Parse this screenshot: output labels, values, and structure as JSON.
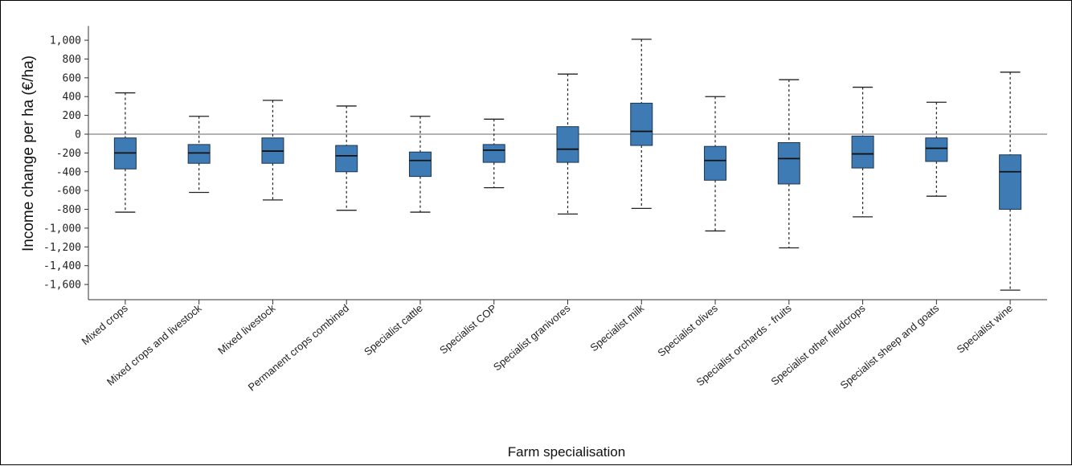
{
  "chart_data": {
    "type": "boxplot",
    "title": "",
    "xlabel": "Farm specialisation",
    "ylabel": "Income change per ha (€/ha)",
    "ylim": [
      -1700,
      1100
    ],
    "yticks": [
      1000,
      800,
      600,
      400,
      200,
      0,
      -200,
      -400,
      -600,
      -800,
      -1000,
      -1200,
      -1400,
      -1600
    ],
    "ytick_labels": [
      "1,000",
      "800",
      "600",
      "400",
      "200",
      "0",
      "-200",
      "-400",
      "-600",
      "-800",
      "-1,000",
      "-1,200",
      "-1,400",
      "-1,600"
    ],
    "reference_line": 0,
    "box_color": "#3e7bb4",
    "categories": [
      "Mixed crops",
      "Mixed crops and livestock",
      "Mixed livestock",
      "Permanent crops combined",
      "Specialist cattle",
      "Specialist COP",
      "Specialist granivores",
      "Specialist milk",
      "Specialist olives",
      "Specialist orchards - fruits",
      "Specialist other fieldcrops",
      "Specialist sheep and goats",
      "Specialist wine"
    ],
    "boxes": [
      {
        "min": -830,
        "q1": -370,
        "median": -200,
        "q3": -40,
        "max": 440
      },
      {
        "min": -620,
        "q1": -310,
        "median": -200,
        "q3": -110,
        "max": 190
      },
      {
        "min": -700,
        "q1": -310,
        "median": -180,
        "q3": -40,
        "max": 360
      },
      {
        "min": -810,
        "q1": -400,
        "median": -230,
        "q3": -120,
        "max": 300
      },
      {
        "min": -830,
        "q1": -450,
        "median": -280,
        "q3": -190,
        "max": 190
      },
      {
        "min": -570,
        "q1": -300,
        "median": -170,
        "q3": -110,
        "max": 160
      },
      {
        "min": -850,
        "q1": -300,
        "median": -160,
        "q3": 80,
        "max": 640
      },
      {
        "min": -790,
        "q1": -120,
        "median": 30,
        "q3": 330,
        "max": 1010
      },
      {
        "min": -1030,
        "q1": -490,
        "median": -280,
        "q3": -130,
        "max": 400
      },
      {
        "min": -1210,
        "q1": -530,
        "median": -260,
        "q3": -90,
        "max": 580
      },
      {
        "min": -880,
        "q1": -360,
        "median": -210,
        "q3": -20,
        "max": 500
      },
      {
        "min": -660,
        "q1": -290,
        "median": -150,
        "q3": -40,
        "max": 340
      },
      {
        "min": -1660,
        "q1": -800,
        "median": -400,
        "q3": -220,
        "max": 660
      }
    ]
  }
}
